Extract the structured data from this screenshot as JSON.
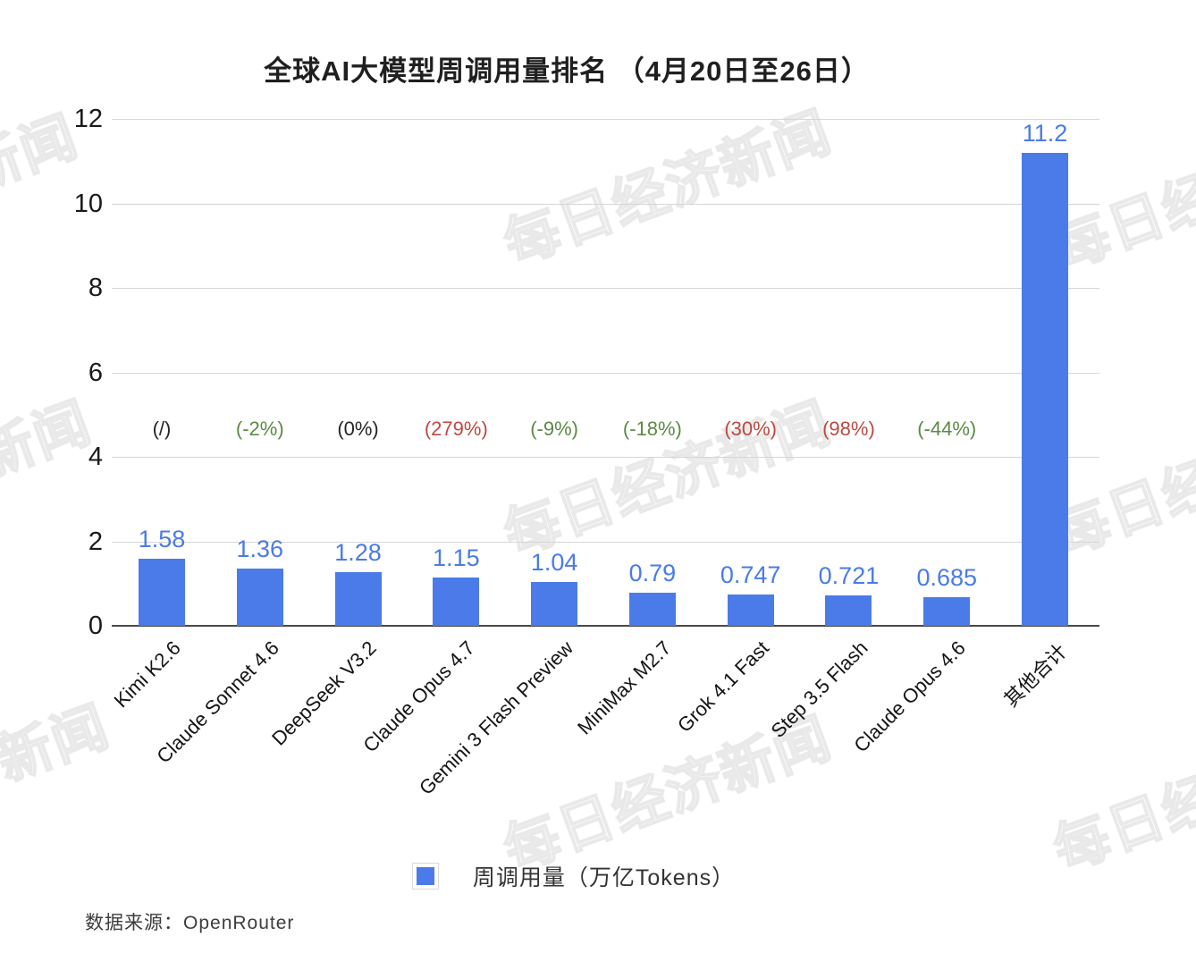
{
  "title": "全球AI大模型周调用量排名 （4月20日至26日）",
  "watermark": {
    "text": "每日经济新闻"
  },
  "legend": {
    "label": "周调用量（万亿Tokens）",
    "swatch_color": "#4a7be8"
  },
  "source": {
    "label": "数据来源：OpenRouter"
  },
  "chart_data": {
    "type": "bar",
    "title": "全球AI大模型周调用量排名 （4月20日至26日）",
    "categories": [
      "Kimi K2.6",
      "Claude Sonnet 4.6",
      "DeepSeek V3.2",
      "Claude Opus 4.7",
      "Gemini 3 Flash Preview",
      "MiniMax M2.7",
      "Grok 4.1 Fast",
      "Step 3.5 Flash",
      "Claude Opus 4.6",
      "其他合计"
    ],
    "values": [
      1.58,
      1.36,
      1.28,
      1.15,
      1.04,
      0.79,
      0.747,
      0.721,
      0.685,
      11.2
    ],
    "value_labels": [
      "1.58",
      "1.36",
      "1.28",
      "1.15",
      "1.04",
      "0.79",
      "0.747",
      "0.721",
      "0.685",
      "11.2"
    ],
    "pct_change": [
      "(/)",
      "(-2%)",
      "(0%)",
      "(279%)",
      "(-9%)",
      "(-18%)",
      "(30%)",
      "(98%)",
      "(-44%)",
      ""
    ],
    "pct_change_colors": [
      "black",
      "green",
      "black",
      "red",
      "green",
      "green",
      "red",
      "red",
      "green",
      ""
    ],
    "xlabel": "",
    "ylabel": "",
    "y_ticks": [
      0,
      2,
      4,
      6,
      8,
      10,
      12
    ],
    "ylim": [
      0,
      12
    ],
    "grid": true,
    "legend_position": "bottom",
    "legend_label": "周调用量（万亿Tokens）",
    "bar_color": "#4a7be8",
    "value_label_color": "#4a7be8",
    "pct_colors": {
      "green": "#5b8a45",
      "red": "#bc4a42",
      "black": "#262626"
    }
  }
}
